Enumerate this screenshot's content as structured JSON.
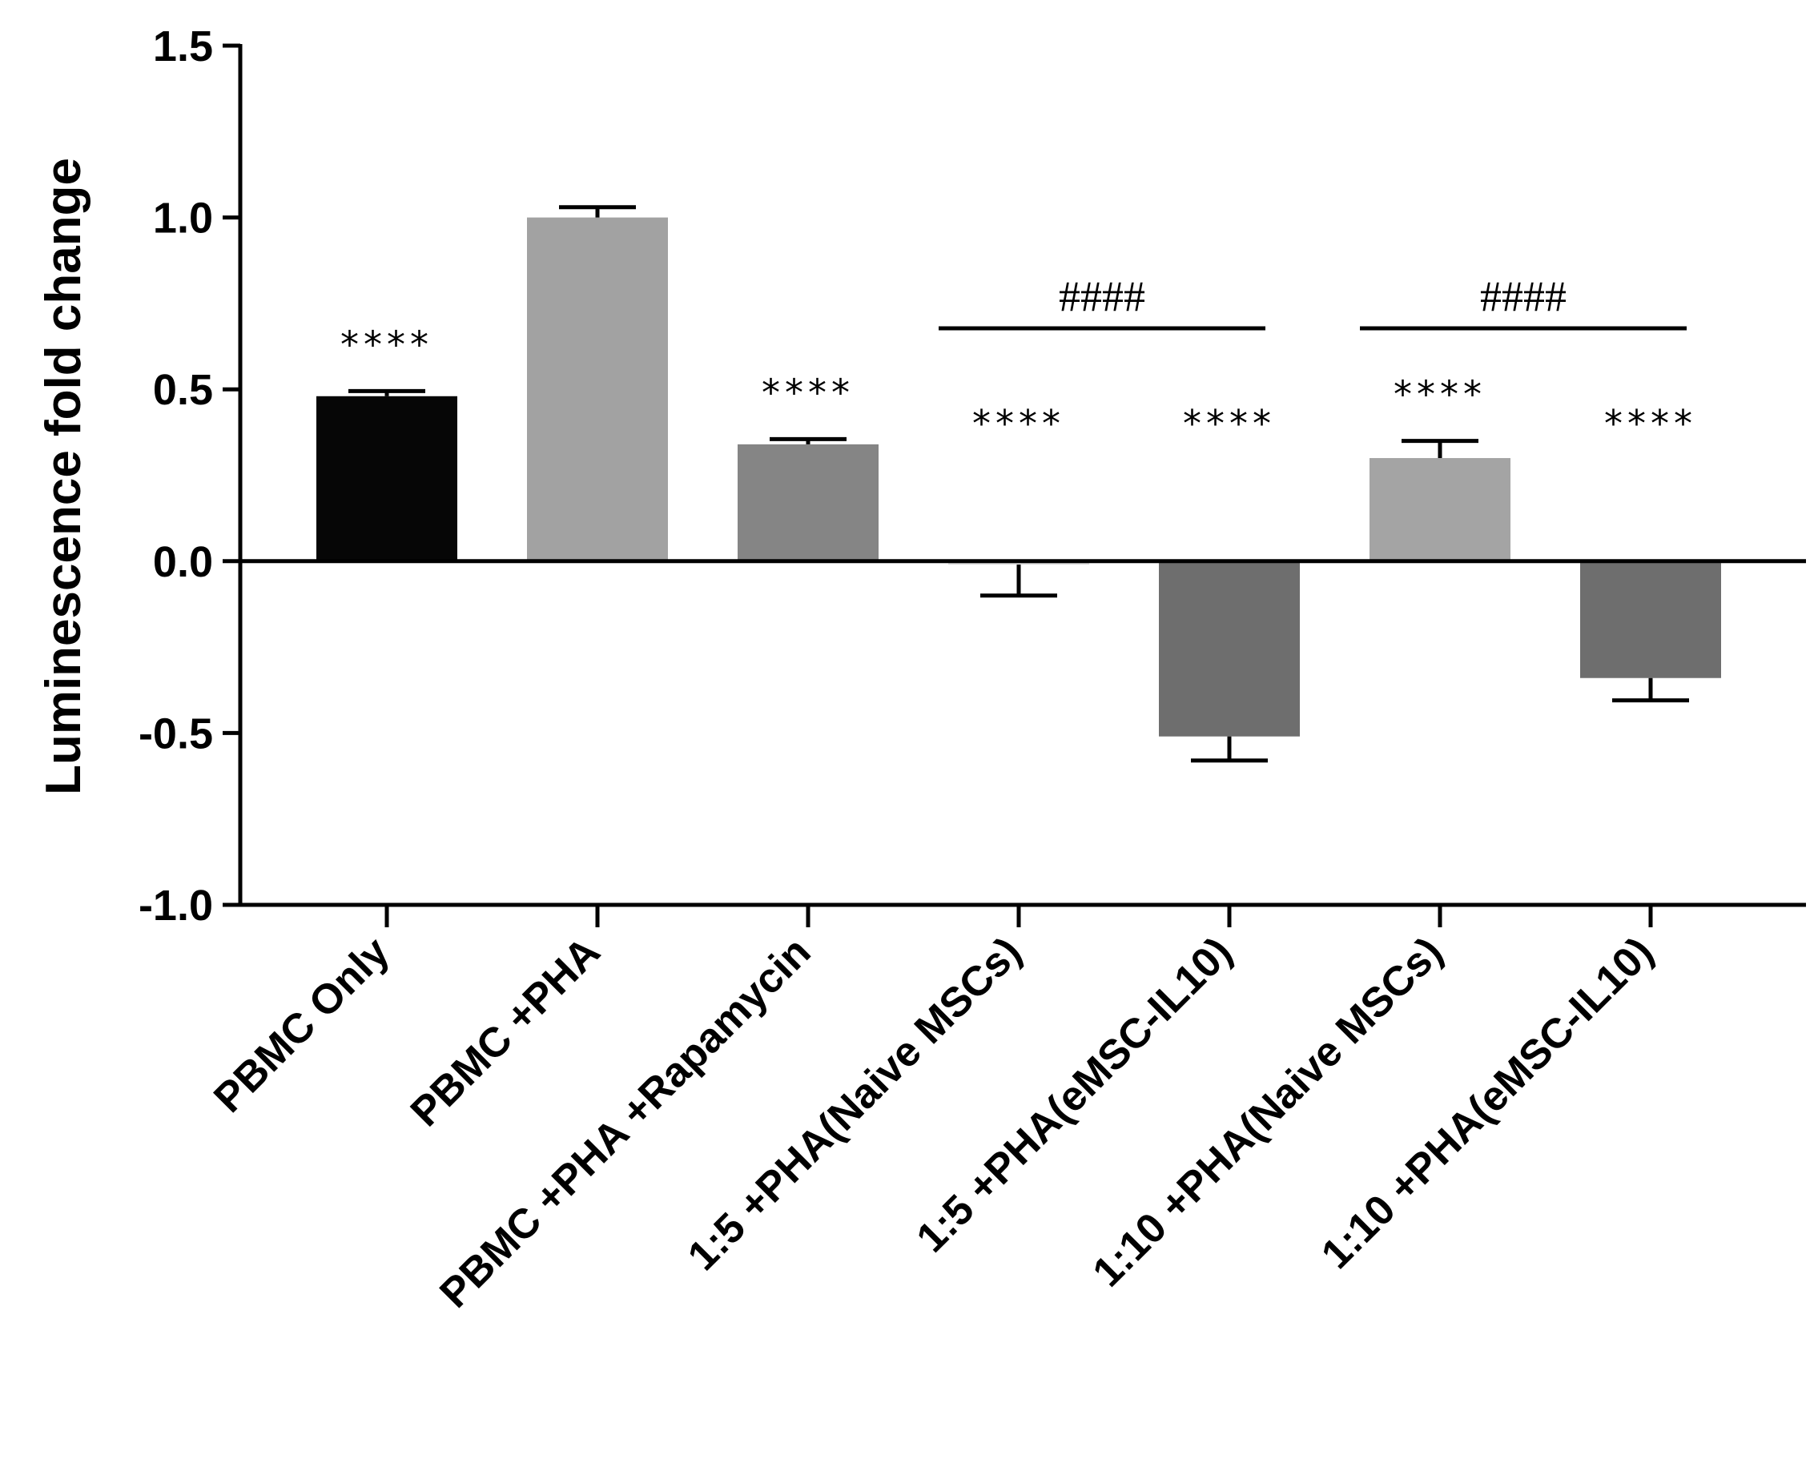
{
  "chart_data": {
    "type": "bar",
    "title": "",
    "xlabel": "",
    "ylabel": "Luminescence fold change",
    "ylim": [
      -1.0,
      1.5
    ],
    "yticks": [
      1.5,
      1.0,
      0.5,
      0.0,
      -0.5,
      -1.0
    ],
    "ytick_labels": [
      "1.5",
      "1.0",
      "0.5",
      "0.0",
      "-0.5",
      "-1.0"
    ],
    "grid": false,
    "categories": [
      "PBMC Only",
      "PBMC +PHA",
      "PBMC +PHA +Rapamycin",
      "1:5 +PHA(Naive MSCs)",
      "1:5 +PHA(eMSC-IL10)",
      "1:10 +PHA(Naive MSCs)",
      "1:10 +PHA(eMSC-IL10)"
    ],
    "values": [
      0.48,
      1.0,
      0.34,
      -0.01,
      -0.51,
      0.3,
      -0.34
    ],
    "errors": [
      0.015,
      0.03,
      0.015,
      0.09,
      0.07,
      0.05,
      0.065
    ],
    "colors": [
      "#060606",
      "#a2a2a2",
      "#858585",
      "#dcdcdc",
      "#6e6e6e",
      "#a4a4a4",
      "#6e6e6e"
    ],
    "significance": [
      "****",
      "",
      "****",
      "****",
      "****",
      "****",
      "****"
    ],
    "comparisons": [
      {
        "from": 3,
        "to": 4,
        "label": "####"
      },
      {
        "from": 5,
        "to": 6,
        "label": "####"
      }
    ]
  }
}
